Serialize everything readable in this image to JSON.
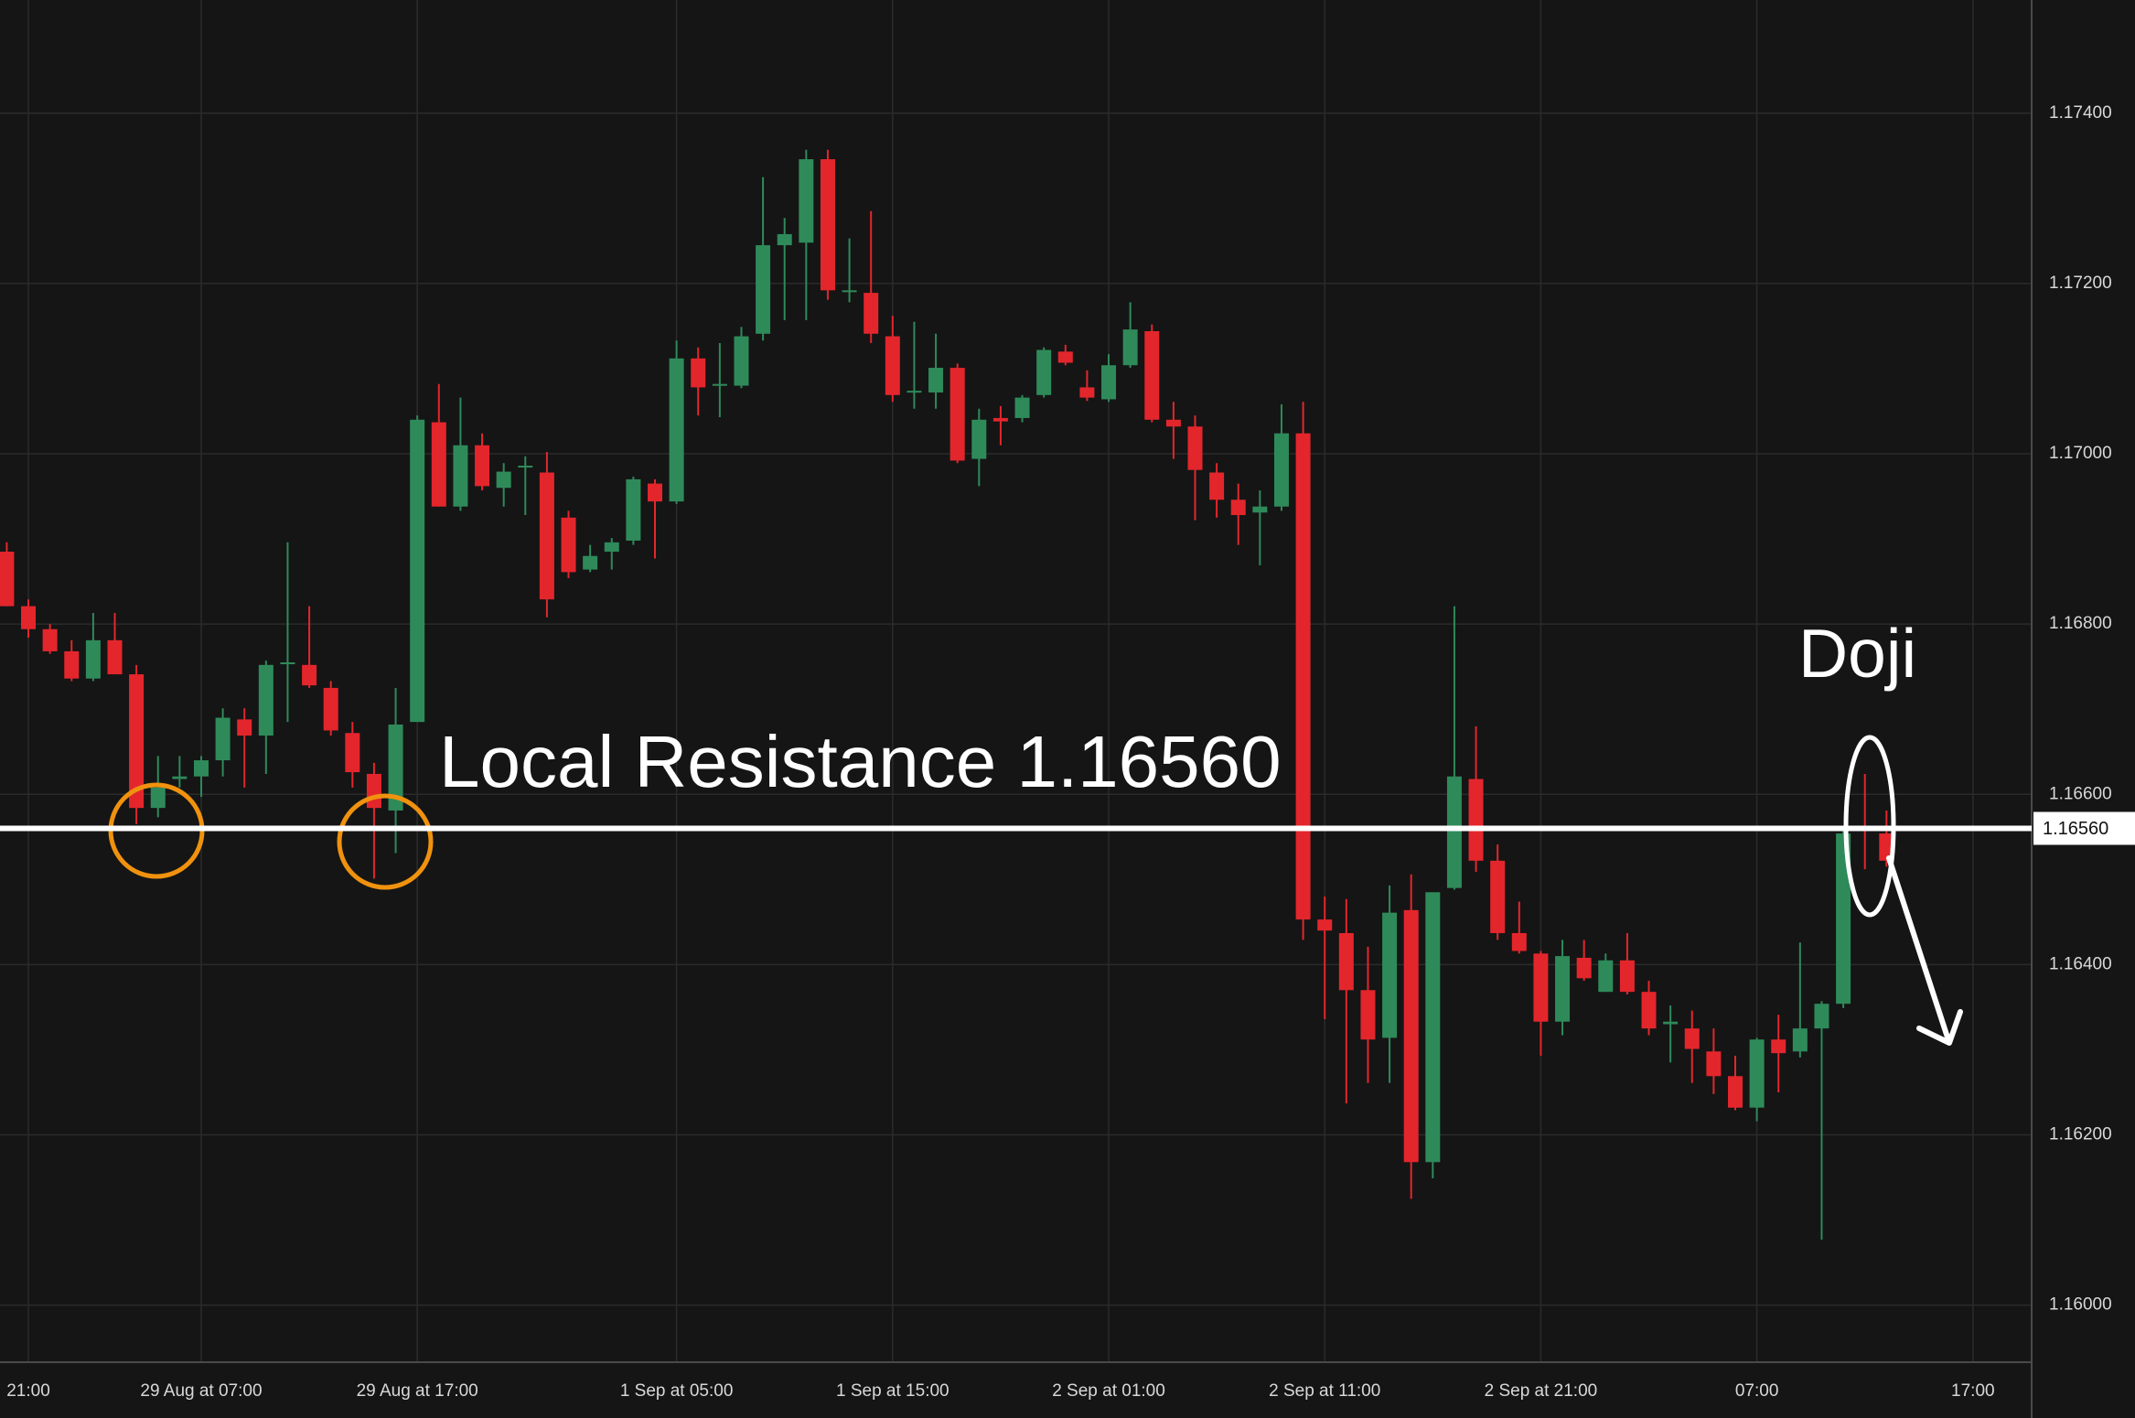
{
  "chart_data": {
    "type": "candlestick",
    "categories": [
      null,
      "21:00",
      null,
      null,
      null,
      null,
      null,
      null,
      null,
      "29 Aug at 07:00",
      null,
      null,
      null,
      null,
      null,
      null,
      null,
      null,
      null,
      "29 Aug at 17:00",
      null,
      null,
      null,
      null,
      null,
      null,
      null,
      null,
      null,
      null,
      null,
      "1 Sep at 05:00",
      null,
      null,
      null,
      null,
      null,
      null,
      null,
      null,
      null,
      "1 Sep at 15:00",
      null,
      null,
      null,
      null,
      null,
      null,
      null,
      null,
      null,
      "2 Sep at 01:00",
      null,
      null,
      null,
      null,
      null,
      null,
      null,
      null,
      null,
      "2 Sep at 11:00",
      null,
      null,
      null,
      null,
      null,
      null,
      null,
      null,
      null,
      "2 Sep at 21:00",
      null,
      null,
      null,
      null,
      null,
      null,
      null,
      null,
      null,
      "07:00",
      null,
      null,
      null,
      null,
      null,
      null,
      null,
      null,
      null,
      "17:00"
    ],
    "open": [
      1.16885,
      1.16821,
      1.16794,
      1.16768,
      1.16736,
      1.16781,
      1.16741,
      1.16584,
      1.16618,
      1.16621,
      1.1664,
      1.16688,
      1.16669,
      1.16754,
      1.16752,
      1.16725,
      1.16672,
      1.16624,
      1.16581,
      1.16685,
      1.17037,
      1.16938,
      1.1701,
      1.1696,
      1.16984,
      1.16978,
      1.16925,
      1.16864,
      1.16885,
      1.16898,
      1.16965,
      1.16944,
      1.17112,
      1.1708,
      1.1708,
      1.17141,
      1.17245,
      1.17248,
      1.17346,
      1.1719,
      1.17189,
      1.17138,
      1.17072,
      1.17072,
      1.17101,
      1.16994,
      1.17042,
      1.17042,
      1.17069,
      1.1712,
      1.17078,
      1.17064,
      1.17104,
      1.17144,
      1.1704,
      1.17032,
      1.16978,
      1.16946,
      1.16931,
      1.16938,
      1.17024,
      1.16453,
      1.16437,
      1.1637,
      1.16314,
      1.16464,
      1.16168,
      1.1649,
      1.16618,
      1.16522,
      1.16437,
      1.16413,
      1.16333,
      1.16408,
      1.16368,
      1.16405,
      1.16368,
      1.1633,
      1.16325,
      1.16298,
      1.16269,
      1.16232,
      1.16312,
      1.16298,
      1.16325,
      1.16354,
      1.1656,
      1.16554,
      null,
      null,
      null,
      null
    ],
    "high": [
      1.16896,
      1.16829,
      1.168,
      1.16781,
      1.16813,
      1.16813,
      1.16752,
      1.16645,
      1.16645,
      1.16645,
      1.16701,
      1.16701,
      1.16757,
      1.16896,
      1.16821,
      1.16733,
      1.16685,
      1.16637,
      1.16725,
      1.17045,
      1.17082,
      1.17066,
      1.17024,
      1.16989,
      1.16997,
      1.17002,
      1.16933,
      1.16893,
      1.16901,
      1.16973,
      1.1697,
      1.17133,
      1.17125,
      1.1713,
      1.17149,
      1.17325,
      1.17277,
      1.17357,
      1.17357,
      1.17253,
      1.17285,
      1.17162,
      1.17155,
      1.17141,
      1.17106,
      1.17053,
      1.17056,
      1.17069,
      1.17125,
      1.17128,
      1.17098,
      1.17117,
      1.17178,
      1.17152,
      1.17061,
      1.17045,
      1.16989,
      1.16965,
      1.16957,
      1.17058,
      1.17061,
      1.1648,
      1.16477,
      1.16421,
      1.16493,
      1.16506,
      1.16469,
      1.16821,
      1.1668,
      1.16541,
      1.16474,
      1.16416,
      1.16429,
      1.16429,
      1.16413,
      1.16437,
      1.16381,
      1.16352,
      1.16346,
      1.16325,
      1.16293,
      1.16314,
      1.16341,
      1.16426,
      1.16357,
      1.16557,
      1.16624,
      1.16581,
      null,
      null,
      null,
      null
    ],
    "low": [
      1.16821,
      1.16784,
      1.16765,
      1.16733,
      1.16733,
      1.16741,
      1.16565,
      1.16573,
      1.16608,
      1.16597,
      1.16621,
      1.16608,
      1.16624,
      1.16685,
      1.16725,
      1.16669,
      1.16608,
      1.16501,
      1.16531,
      1.16685,
      1.16938,
      1.16933,
      1.16957,
      1.16938,
      1.16928,
      1.16808,
      1.16854,
      1.16861,
      1.16864,
      1.16893,
      1.16877,
      1.16941,
      1.17045,
      1.17043,
      1.17077,
      1.17133,
      1.17157,
      1.17157,
      1.17181,
      1.17178,
      1.1713,
      1.17061,
      1.17053,
      1.17053,
      1.16989,
      1.16962,
      1.1701,
      1.17037,
      1.17066,
      1.17104,
      1.17062,
      1.17061,
      1.17101,
      1.17037,
      1.16994,
      1.16922,
      1.16925,
      1.16893,
      1.16869,
      1.16933,
      1.16429,
      1.16336,
      1.16237,
      1.16261,
      1.16261,
      1.16125,
      1.16149,
      1.16488,
      1.16509,
      1.16429,
      1.16413,
      1.16293,
      1.16317,
      1.16381,
      1.16368,
      1.16365,
      1.16317,
      1.16285,
      1.16261,
      1.16248,
      1.16229,
      1.16216,
      1.1625,
      1.16291,
      1.16077,
      1.16349,
      1.16512,
      1.16515,
      null,
      null,
      null,
      null
    ],
    "close": [
      1.16821,
      1.16794,
      1.16768,
      1.16736,
      1.16781,
      1.16741,
      1.16584,
      1.16608,
      1.16621,
      1.1664,
      1.1669,
      1.16669,
      1.16752,
      1.16755,
      1.16728,
      1.16675,
      1.16626,
      1.16584,
      1.16682,
      1.1704,
      1.16938,
      1.1701,
      1.16962,
      1.16979,
      1.16986,
      1.16829,
      1.16861,
      1.1688,
      1.16896,
      1.1697,
      1.16944,
      1.17112,
      1.17078,
      1.17082,
      1.17138,
      1.17245,
      1.17258,
      1.17346,
      1.17192,
      1.17192,
      1.17141,
      1.17069,
      1.17074,
      1.17101,
      1.16992,
      1.1704,
      1.17038,
      1.17066,
      1.17122,
      1.17107,
      1.17066,
      1.17104,
      1.17146,
      1.1704,
      1.17032,
      1.16981,
      1.16946,
      1.16928,
      1.16938,
      1.17024,
      1.16453,
      1.1644,
      1.1637,
      1.16312,
      1.16461,
      1.16168,
      1.16485,
      1.16621,
      1.16522,
      1.16437,
      1.16416,
      1.16333,
      1.1641,
      1.16384,
      1.16405,
      1.16368,
      1.16325,
      1.16333,
      1.16301,
      1.16269,
      1.16232,
      1.16312,
      1.16296,
      1.16325,
      1.16354,
      1.16554,
      1.16557,
      1.16522,
      null,
      null,
      null,
      null
    ],
    "up_color": "#2f8a5a",
    "down_color": "#e3262c",
    "ylim": [
      1.15933,
      1.17533
    ],
    "yticks": [
      {
        "value": 1.16,
        "label": "1.16000"
      },
      {
        "value": 1.162,
        "label": "1.16200"
      },
      {
        "value": 1.164,
        "label": "1.16400"
      },
      {
        "value": 1.166,
        "label": "1.16600"
      },
      {
        "value": 1.168,
        "label": "1.16800"
      },
      {
        "value": 1.17,
        "label": "1.17000"
      },
      {
        "value": 1.172,
        "label": "1.17200"
      },
      {
        "value": 1.174,
        "label": "1.17400"
      }
    ],
    "grid": true,
    "resistance": {
      "value": 1.1656,
      "label": "1.16560"
    },
    "annotations": [
      "Local Resistance 1.16560",
      "Doji"
    ]
  }
}
